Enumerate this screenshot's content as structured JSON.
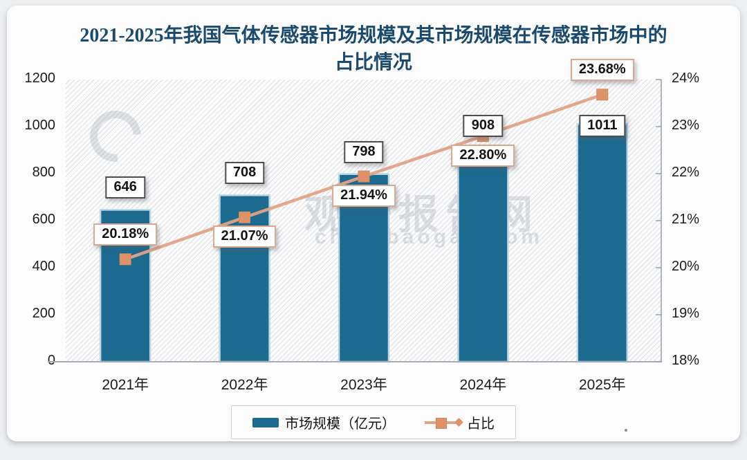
{
  "title": "2021-2025年我国气体传感器市场规模及其市场规模在传感器市场中的占比情况",
  "watermark": {
    "cn": "观研报告网",
    "domain": "chinabaogao.com"
  },
  "legend": {
    "bar_label": "市场规模（亿元）",
    "line_label": "占比"
  },
  "colors": {
    "bar": "#1c6a90",
    "bar_edge": "#b9d8e7",
    "line": "#e2a384",
    "marker": "#de9268",
    "marker_edge": "#cf8a61",
    "title": "#1a4a6d",
    "value_box_border": "#4d4d4d",
    "pct_box_border": "#d9a88e",
    "axis_line": "#9aa0a5"
  },
  "chart_data": {
    "type": "bar",
    "categories": [
      "2021年",
      "2022年",
      "2023年",
      "2024年",
      "2025年"
    ],
    "series": [
      {
        "name": "市场规模（亿元）",
        "type": "bar",
        "axis": "left",
        "values": [
          646,
          708,
          798,
          908,
          1011
        ],
        "labels": [
          "646",
          "708",
          "798",
          "908",
          "1011"
        ]
      },
      {
        "name": "占比",
        "type": "line",
        "axis": "right",
        "values": [
          20.18,
          21.07,
          21.94,
          22.8,
          23.68
        ],
        "labels": [
          "20.18%",
          "21.07%",
          "21.94%",
          "22.80%",
          "23.68%"
        ]
      }
    ],
    "title": "2021-2025年我国气体传感器市场规模及其市场规模在传感器市场中的占比情况",
    "xlabel": "",
    "ylabel": "",
    "left_axis": {
      "min": 0,
      "max": 1200,
      "step": 200,
      "ticks": [
        "1200",
        "1000",
        "800",
        "600",
        "400",
        "200",
        "0"
      ]
    },
    "right_axis": {
      "min": 18,
      "max": 24,
      "step": 1,
      "ticks": [
        "24%",
        "23%",
        "22%",
        "21%",
        "20%",
        "19%",
        "18%"
      ]
    },
    "layout": {
      "grid": false,
      "legend_position": "bottom",
      "plot_background": "diagonal-hatch",
      "pct_label_side": [
        "above",
        "below",
        "below",
        "below",
        "above"
      ],
      "value_label_overlap": [
        false,
        false,
        false,
        false,
        true
      ]
    }
  }
}
